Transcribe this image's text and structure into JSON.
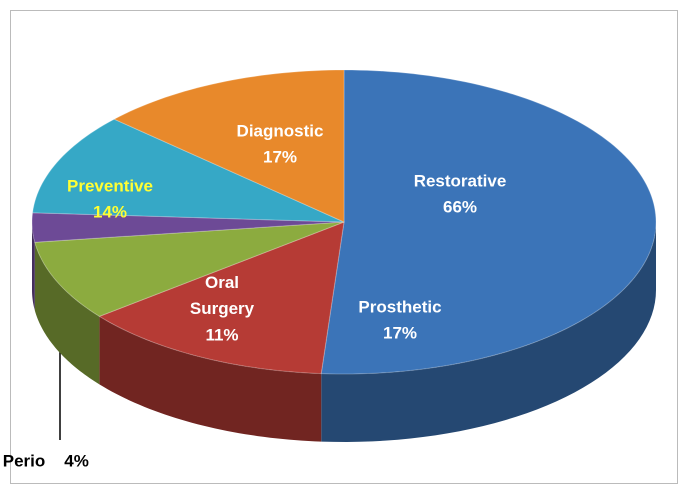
{
  "chart_data": {
    "type": "pie3d",
    "categories": [
      "Restorative",
      "Prosthetic",
      "Oral Surgery",
      "Perio",
      "Preventive",
      "Diagnostic"
    ],
    "values": [
      66,
      17,
      11,
      4,
      14,
      17
    ],
    "value_labels": [
      "66%",
      "17%",
      "11%",
      "4%",
      "14%",
      "17%"
    ],
    "colors": [
      "#3b74b8",
      "#b63b35",
      "#8cab3f",
      "#6d4a96",
      "#36a8c6",
      "#e8892b"
    ],
    "label_colors": [
      "#ffffff",
      "#ffffff",
      "#ffffff",
      "#000000",
      "#ffff33",
      "#ffffff"
    ]
  }
}
